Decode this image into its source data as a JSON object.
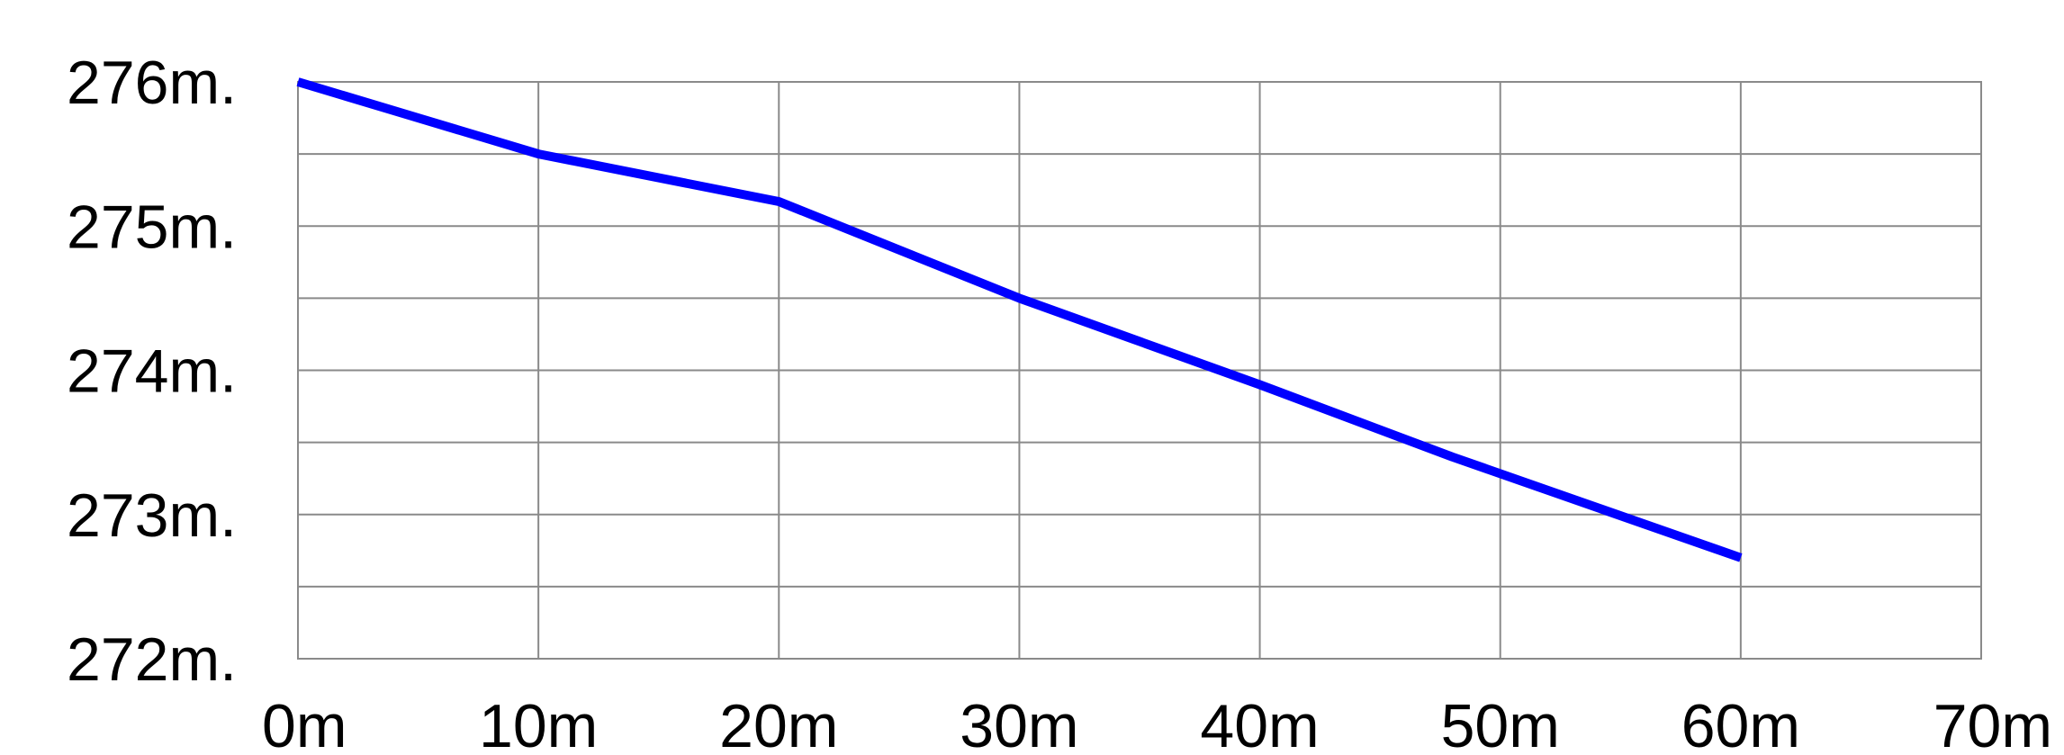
{
  "chart_data": {
    "type": "line",
    "title": "",
    "xlabel": "",
    "ylabel": "",
    "xlim": [
      0,
      70
    ],
    "ylim": [
      272,
      276
    ],
    "grid": true,
    "x_ticks": [
      0,
      10,
      20,
      30,
      40,
      50,
      60,
      70
    ],
    "x_tick_labels": [
      "0m",
      "10m",
      "20m",
      "30m",
      "40m",
      "50m",
      "60m",
      "70m"
    ],
    "y_ticks": [
      276,
      275,
      274,
      273,
      272
    ],
    "y_tick_labels": [
      "276m.",
      "275m.",
      "274m.",
      "273m.",
      "272m."
    ],
    "y_minor_gridlines": [
      275.5,
      274.5,
      273.5,
      272.5
    ],
    "series": [
      {
        "color": "#0000ff",
        "x": [
          0,
          10,
          20,
          30,
          40,
          48,
          60
        ],
        "y": [
          276.0,
          275.5,
          275.17,
          274.5,
          273.9,
          273.4,
          272.7
        ]
      }
    ]
  }
}
